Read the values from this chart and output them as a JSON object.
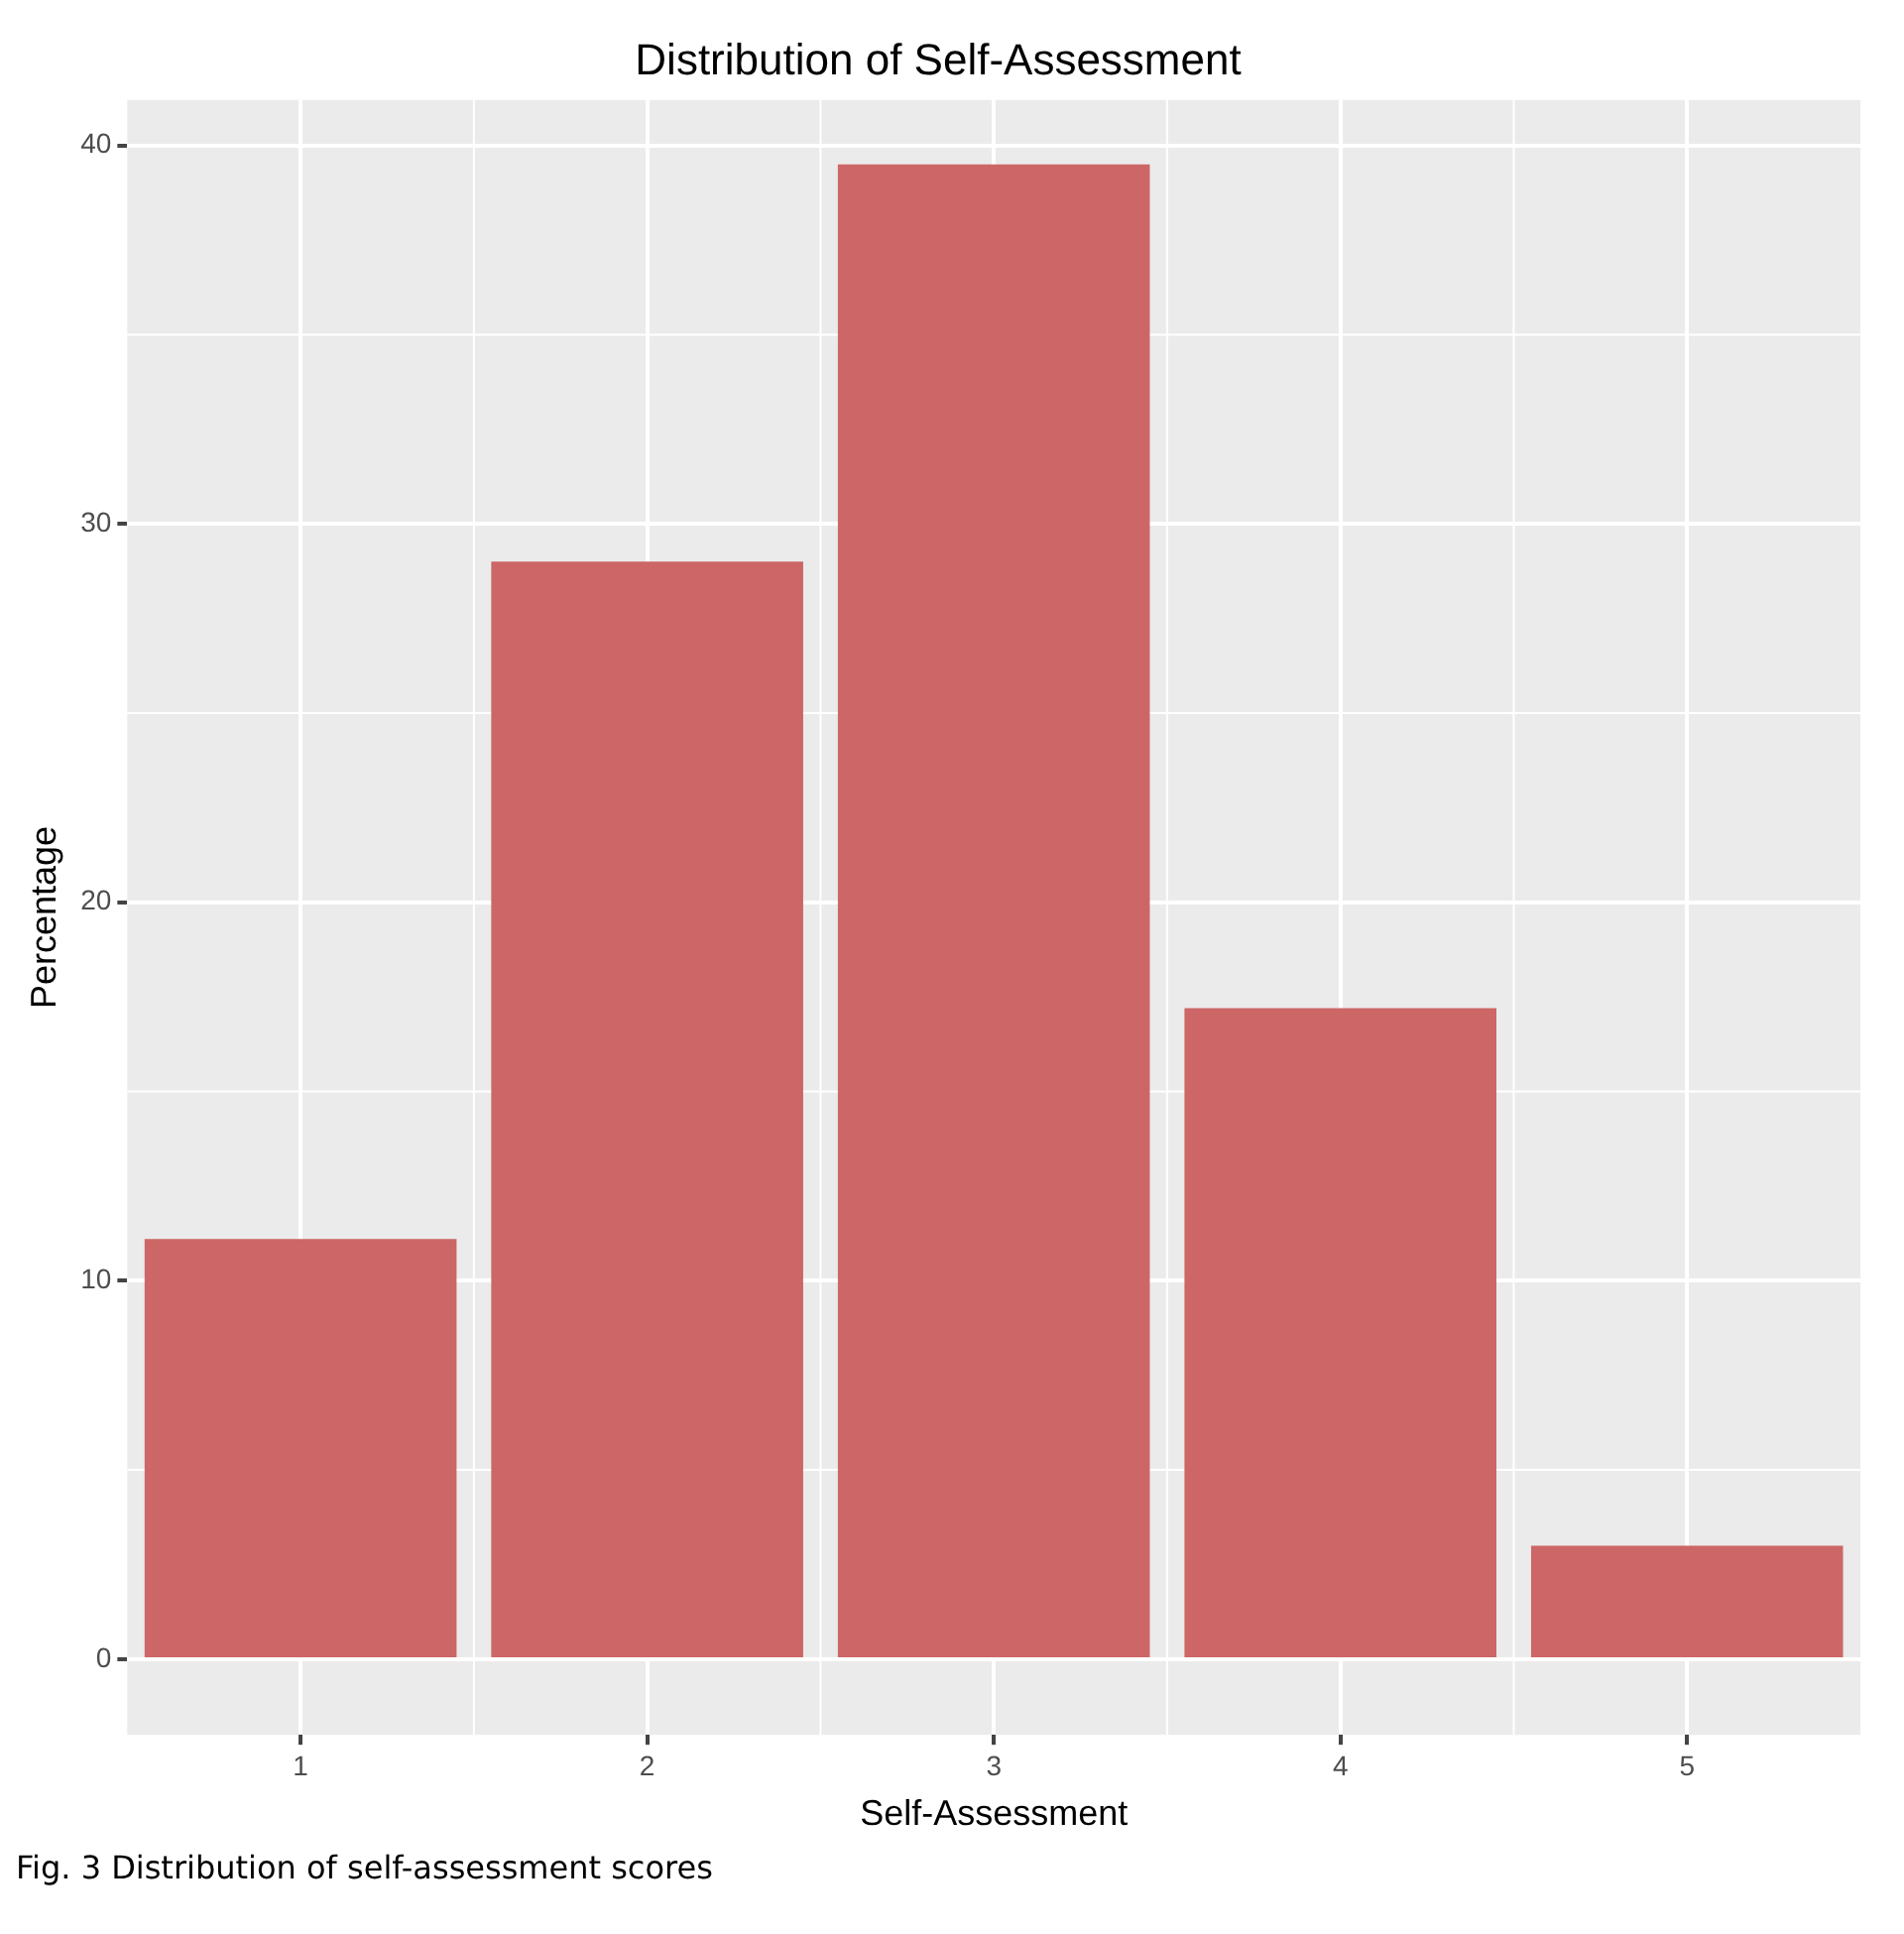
{
  "chart_data": {
    "type": "bar",
    "title": "Distribution of Self-Assessment",
    "xlabel": "Self-Assessment",
    "ylabel": "Percentage",
    "categories": [
      "1",
      "2",
      "3",
      "4",
      "5"
    ],
    "values": [
      11.1,
      29.0,
      39.5,
      17.2,
      3.0
    ],
    "color": "#cd6666",
    "ylim": [
      -2,
      41.2
    ],
    "yticks": [
      0,
      10,
      20,
      30,
      40
    ],
    "grid": true,
    "annotations": [
      "Fig. 3 Distribution of self-assessment scores"
    ]
  }
}
